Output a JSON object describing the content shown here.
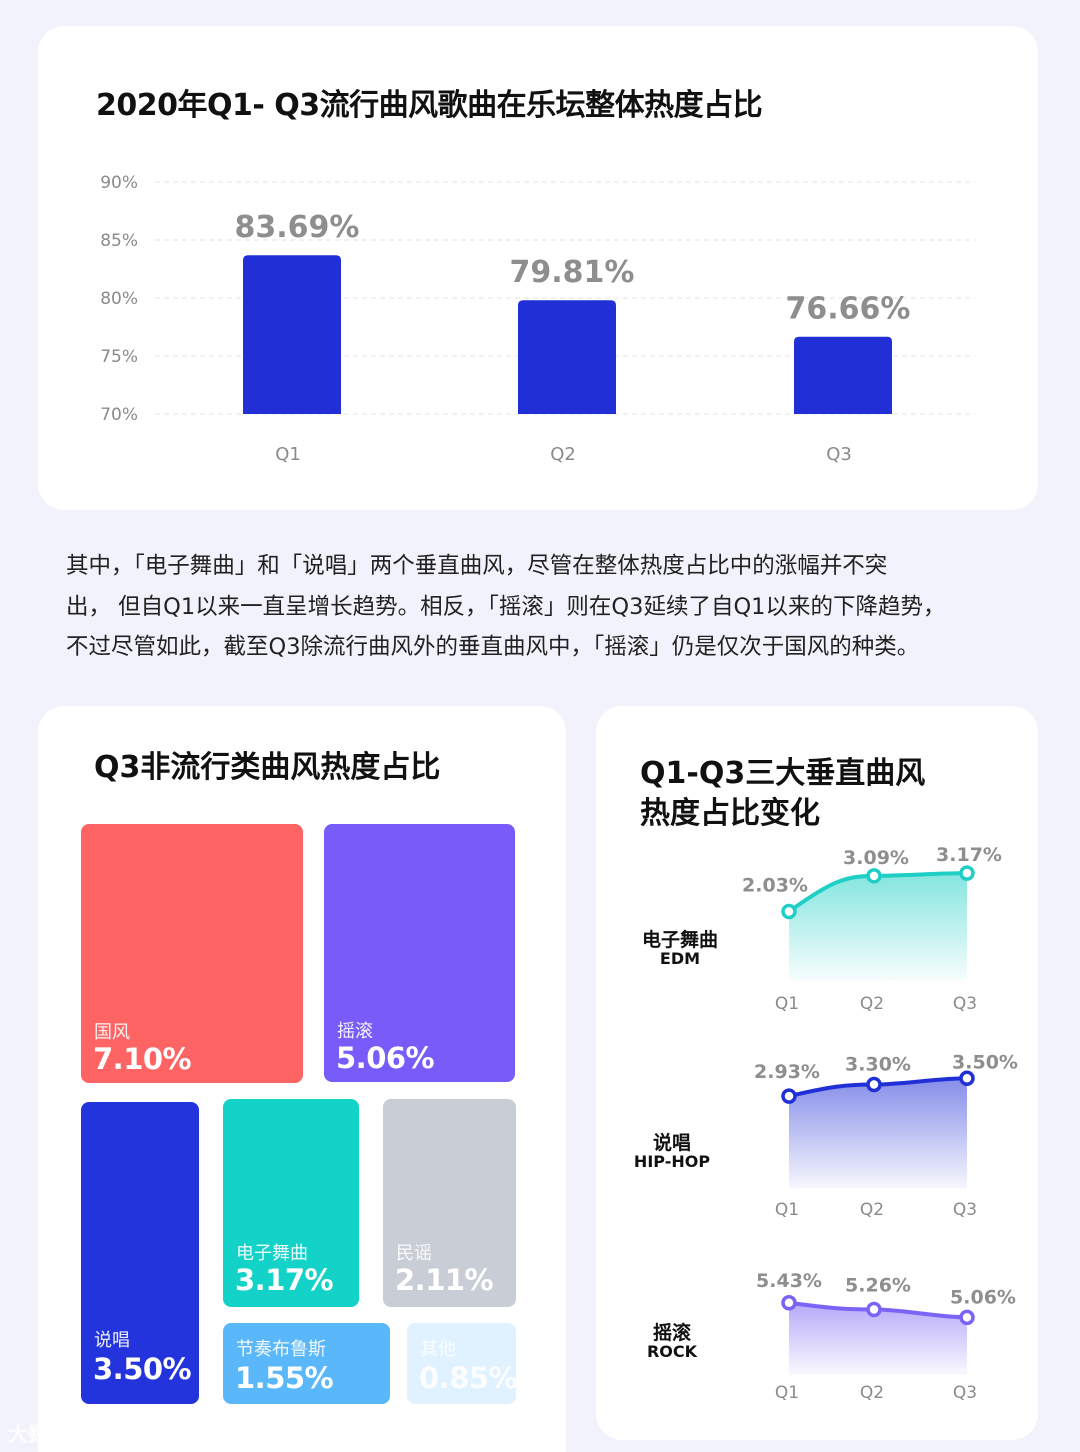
{
  "colors": {
    "background": "#f1f2fb",
    "bar": "#2130d6",
    "edm": "#1fcfc5",
    "hiphop": "#2130d6",
    "rock": "#7a63f5",
    "grid": "#e3e3e8",
    "axis_text": "#8a8a8a",
    "value_text": "#8e8e8e"
  },
  "top": {
    "title": "2020年Q1- Q3流行曲风歌曲在乐坛整体热度占比"
  },
  "paragraph": {
    "lines": [
      "其中，「电子舞曲」和「说唱」两个垂直曲风，尽管在整体热度占比中的涨幅并不突",
      "出， 但自Q1以来一直呈增长趋势。相反，「摇滚」则在Q3延续了自Q1以来的下降趋势，",
      "不过尽管如此，截至Q3除流行曲风外的垂直曲风中，「摇滚」仍是仅次于国风的种类。"
    ]
  },
  "treemap": {
    "title": "Q3非流行类曲风热度占比",
    "tiles": [
      {
        "label": "国风",
        "value": "7.10%",
        "color": "#ff6464"
      },
      {
        "label": "摇滚",
        "value": "5.06%",
        "color": "#785cfa"
      },
      {
        "label": "说唱",
        "value": "3.50%",
        "color": "#2434dc"
      },
      {
        "label": "电子舞曲",
        "value": "3.17%",
        "color": "#13d2c7"
      },
      {
        "label": "民谣",
        "value": "2.11%",
        "color": "#c9cdd6"
      },
      {
        "label": "节奏布鲁斯",
        "value": "1.55%",
        "color": "#5ab8fa"
      },
      {
        "label": "其他",
        "value": "0.85%",
        "color": "#e0f1ff"
      }
    ]
  },
  "linecharts": {
    "title_lines": [
      "Q1-Q3三大垂直曲风",
      "热度占比变化"
    ],
    "groups": [
      {
        "name_cn": "电子舞曲",
        "name_en": "EDM"
      },
      {
        "name_cn": "说唱",
        "name_en": "HIP-HOP"
      },
      {
        "name_cn": "摇滚",
        "name_en": "ROCK"
      }
    ]
  },
  "chart_data": [
    {
      "type": "bar",
      "title": "2020年Q1- Q3流行曲风歌曲在乐坛整体热度占比",
      "categories": [
        "Q1",
        "Q2",
        "Q3"
      ],
      "values": [
        83.69,
        79.81,
        76.66
      ],
      "value_labels": [
        "83.69%",
        "79.81%",
        "76.66%"
      ],
      "ylim": [
        70,
        90
      ],
      "yticks": [
        70,
        75,
        80,
        85,
        90
      ],
      "ytick_labels": [
        "70%",
        "75%",
        "80%",
        "85%",
        "90%"
      ],
      "grid": true
    },
    {
      "type": "treemap",
      "title": "Q3非流行类曲风热度占比",
      "categories": [
        "国风",
        "摇滚",
        "说唱",
        "电子舞曲",
        "民谣",
        "节奏布鲁斯",
        "其他"
      ],
      "values": [
        7.1,
        5.06,
        3.5,
        3.17,
        2.11,
        1.55,
        0.85
      ]
    },
    {
      "type": "area",
      "x": [
        "Q1",
        "Q2",
        "Q3"
      ],
      "values": [
        2.03,
        3.09,
        3.17
      ],
      "value_labels": [
        "2.03%",
        "3.09%",
        "3.17%"
      ],
      "ylim": [
        0,
        3.5
      ]
    },
    {
      "type": "area",
      "x": [
        "Q1",
        "Q2",
        "Q3"
      ],
      "values": [
        2.93,
        3.3,
        3.5
      ],
      "value_labels": [
        "2.93%",
        "3.30%",
        "3.50%"
      ],
      "ylim": [
        0,
        3.7
      ]
    },
    {
      "type": "area",
      "x": [
        "Q1",
        "Q2",
        "Q3"
      ],
      "values": [
        5.43,
        5.26,
        5.06
      ],
      "value_labels": [
        "5.43%",
        "5.26%",
        "5.06%"
      ],
      "ylim": [
        3.6,
        5.5
      ]
    }
  ],
  "watermark": "大数跨境"
}
